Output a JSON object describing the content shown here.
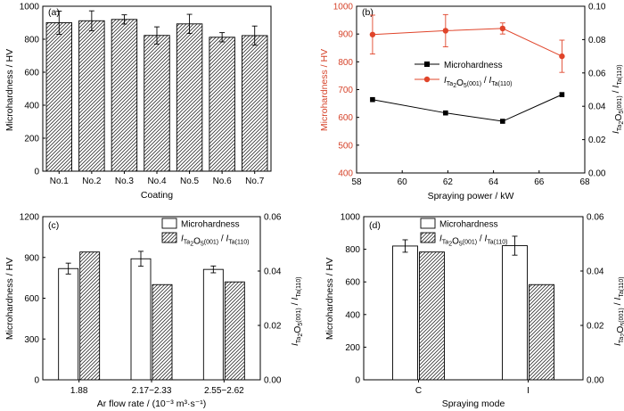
{
  "chart_data": [
    {
      "panel": "(a)",
      "type": "bar",
      "xlabel": "Coating",
      "ylabel": "Microhardness / HV",
      "ylim": [
        0,
        1000
      ],
      "yticks": [
        "0",
        "200",
        "400",
        "600",
        "800",
        "1000"
      ],
      "categories": [
        "No.1",
        "No.2",
        "No.3",
        "No.4",
        "No.5",
        "No.6",
        "No.7"
      ],
      "values": [
        900,
        912,
        920,
        823,
        893,
        812,
        822
      ],
      "errors": [
        70,
        60,
        28,
        52,
        58,
        28,
        58
      ],
      "pattern": "hatched"
    },
    {
      "panel": "(b)",
      "type": "line",
      "xlabel": "Spraying power / kW",
      "ylabel": "Microhardness / HV",
      "ylabel_color": "#d6432a",
      "xlim": [
        58,
        68
      ],
      "xticks": [
        "58",
        "60",
        "62",
        "64",
        "66",
        "68"
      ],
      "ylim": [
        400,
        1000
      ],
      "yticks": [
        "400",
        "500",
        "600",
        "700",
        "800",
        "900",
        "1000"
      ],
      "y2label": "I_Ta2O5(001) / I_Ta(110)",
      "y2lim": [
        0,
        0.1
      ],
      "y2ticks": [
        "0.00",
        "0.02",
        "0.04",
        "0.06",
        "0.08",
        "0.10"
      ],
      "legend": {
        "position": "center",
        "entries": [
          "Microhardness",
          "I_Ta2O5(001) / I_Ta(110)"
        ]
      },
      "series": [
        {
          "name": "Microhardness",
          "axis": "left",
          "color": "#e0442a",
          "marker": "circle",
          "x": [
            58.7,
            61.9,
            64.4,
            67.0
          ],
          "y": [
            898,
            912,
            920,
            820
          ],
          "errors": [
            70,
            58,
            20,
            58
          ]
        },
        {
          "name": "I_Ta2O5(001) / I_Ta(110)",
          "axis": "right",
          "color": "#000000",
          "marker": "square",
          "x": [
            58.7,
            61.9,
            64.4,
            67.0
          ],
          "y": [
            0.044,
            0.036,
            0.031,
            0.047
          ]
        }
      ]
    },
    {
      "panel": "(c)",
      "type": "bar",
      "xlabel": "Ar flow rate / (10⁻³ m³·s⁻¹)",
      "ylabel": "Microhardness / HV",
      "ylim": [
        0,
        1200
      ],
      "yticks": [
        "0",
        "300",
        "600",
        "900",
        "1200"
      ],
      "y2label": "I_Ta2O5(001) / I_Ta(110)",
      "y2lim": [
        0,
        0.06
      ],
      "y2ticks": [
        "0.00",
        "0.02",
        "0.04",
        "0.06"
      ],
      "categories": [
        "1.88",
        "2.17−2.33",
        "2.55−2.62"
      ],
      "legend": {
        "position": "top-right",
        "entries": [
          "Microhardness",
          "I_Ta2O5(001) / I_Ta(110)"
        ]
      },
      "series": [
        {
          "name": "Microhardness",
          "axis": "left",
          "style": "open",
          "values": [
            818,
            890,
            812
          ],
          "errors": [
            40,
            55,
            25
          ]
        },
        {
          "name": "I_Ta2O5(001) / I_Ta(110)",
          "axis": "right",
          "style": "hatched",
          "values": [
            0.047,
            0.035,
            0.036
          ]
        }
      ]
    },
    {
      "panel": "(d)",
      "type": "bar",
      "xlabel": "Spraying mode",
      "ylabel": "Microhardness / HV",
      "ylim": [
        0,
        1000
      ],
      "yticks": [
        "0",
        "200",
        "400",
        "600",
        "800",
        "1000"
      ],
      "y2label": "I_Ta2O5(001) / I_Ta(110)",
      "y2lim": [
        0,
        0.06
      ],
      "y2ticks": [
        "0.00",
        "0.02",
        "0.04",
        "0.06"
      ],
      "categories": [
        "C",
        "I"
      ],
      "legend": {
        "position": "top-right",
        "entries": [
          "Microhardness",
          "I_Ta2O5(001) / I_Ta(110)"
        ]
      },
      "series": [
        {
          "name": "Microhardness",
          "axis": "left",
          "style": "open",
          "values": [
            820,
            822
          ],
          "errors": [
            38,
            58
          ]
        },
        {
          "name": "I_Ta2O5(001) / I_Ta(110)",
          "axis": "right",
          "style": "hatched",
          "values": [
            0.047,
            0.035
          ]
        }
      ]
    }
  ]
}
